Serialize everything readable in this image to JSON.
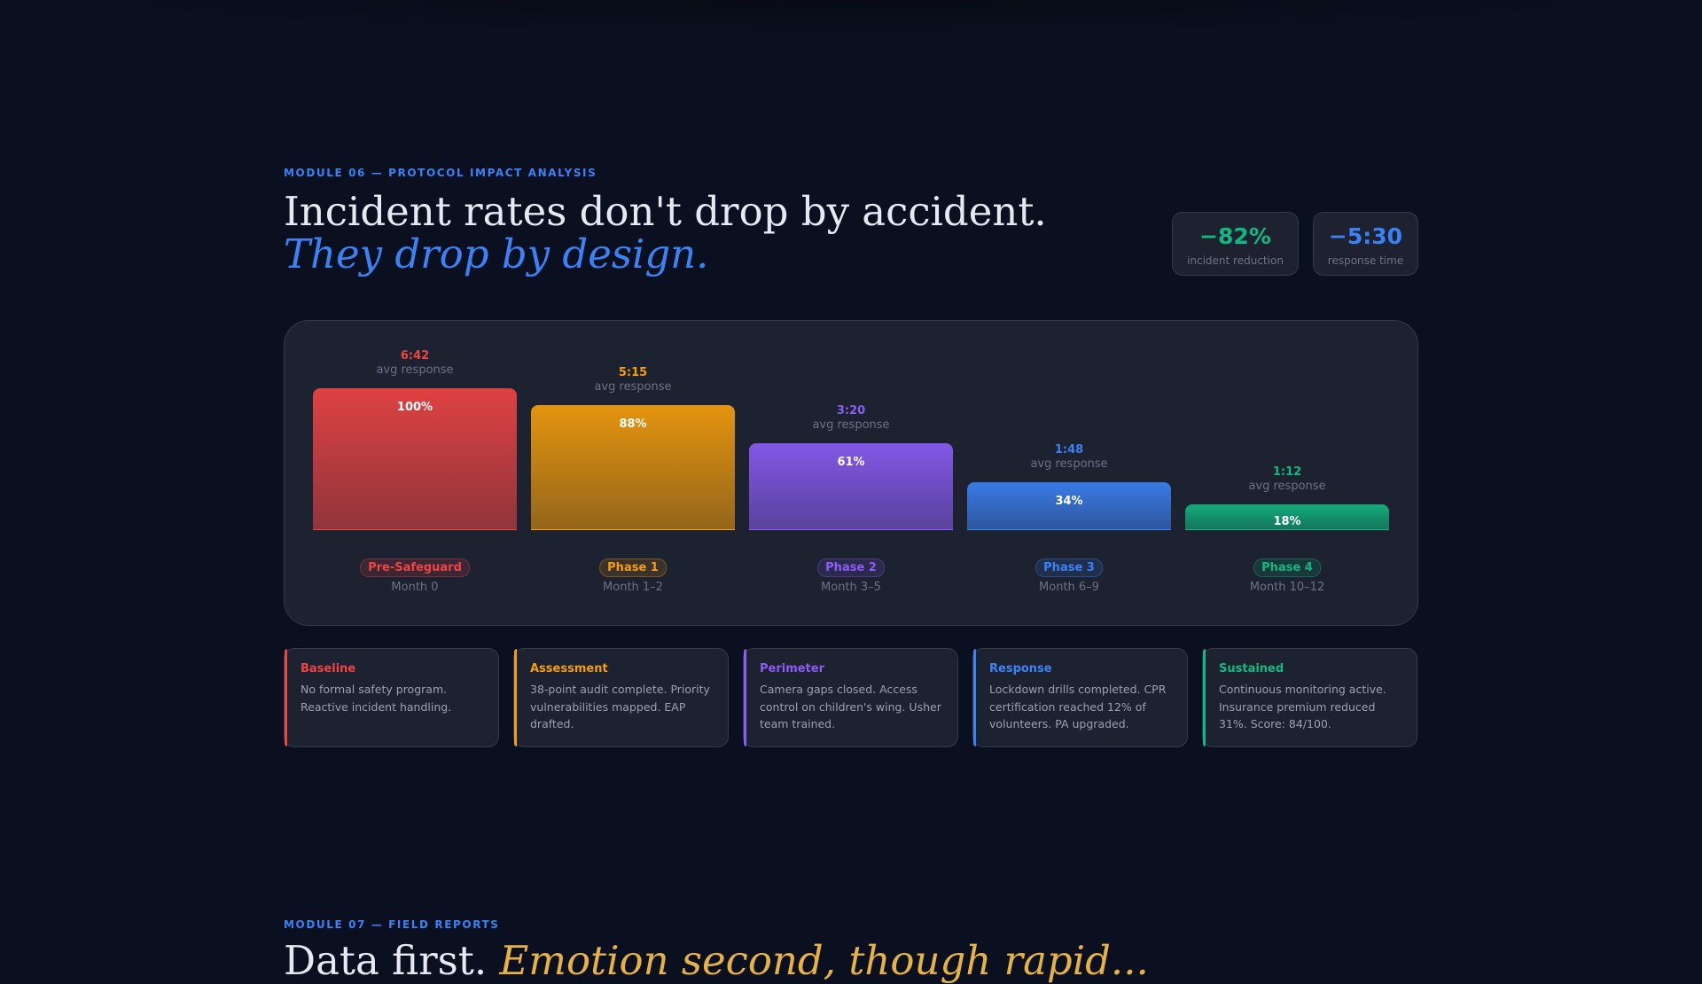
{
  "module6": {
    "eyebrow": "MODULE 06 — PROTOCOL IMPACT ANALYSIS",
    "headline_line1": "Incident rates don't drop by accident.",
    "headline_line2": "They drop by design."
  },
  "stats": [
    {
      "value": "−82%",
      "label": "incident reduction",
      "color": "#10b981"
    },
    {
      "value": "−5:30",
      "label": "response time",
      "color": "#3b82f6"
    }
  ],
  "chart_data": {
    "type": "bar",
    "categories": [
      "Pre-Safeguard",
      "Phase 1",
      "Phase 2",
      "Phase 3",
      "Phase 4"
    ],
    "subcategories": [
      "Month 0",
      "Month 1–2",
      "Month 3–5",
      "Month 6–9",
      "Month 10–12"
    ],
    "values": [
      100,
      88,
      61,
      34,
      18
    ],
    "value_labels": [
      "100%",
      "88%",
      "61%",
      "34%",
      "18%"
    ],
    "annotations": [
      "6:42",
      "5:15",
      "3:20",
      "1:48",
      "1:12"
    ],
    "annotation_caption": "avg response",
    "colors": [
      "#ef4444",
      "#f59e0b",
      "#8b5cf6",
      "#3b82f6",
      "#10b981"
    ],
    "ylim": [
      0,
      100
    ],
    "grid": false
  },
  "phases": [
    {
      "title": "Baseline",
      "text": "No formal safety program. Reactive incident handling.",
      "color": "#ef4444"
    },
    {
      "title": "Assessment",
      "text": "38-point audit complete. Priority vulnerabilities mapped. EAP drafted.",
      "color": "#f59e0b"
    },
    {
      "title": "Perimeter",
      "text": "Camera gaps closed. Access control on children's wing. Usher team trained.",
      "color": "#8b5cf6"
    },
    {
      "title": "Response",
      "text": "Lockdown drills completed. CPR certification reached 12% of volunteers. PA upgraded.",
      "color": "#3b82f6"
    },
    {
      "title": "Sustained",
      "text": "Continuous monitoring active. Insurance premium reduced 31%. Score: 84/100.",
      "color": "#10b981"
    }
  ],
  "module7": {
    "eyebrow": "MODULE 07 — FIELD REPORTS",
    "headline_start": "Data first. ",
    "headline_accent": "Emotion second, though rapid..."
  }
}
